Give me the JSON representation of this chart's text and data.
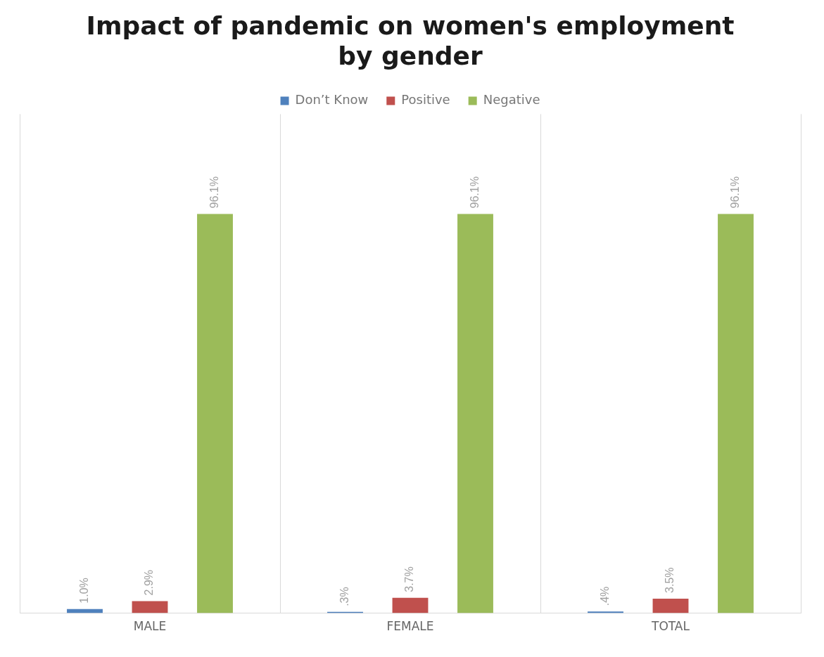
{
  "chart_data": {
    "type": "bar",
    "title": "Impact of pandemic on women's employment by gender",
    "categories": [
      "MALE",
      "FEMALE",
      "TOTAL"
    ],
    "series": [
      {
        "name": "Don’t Know",
        "color": "#4f81bd",
        "values": [
          1.0,
          0.3,
          0.4
        ],
        "value_labels": [
          "1.0%",
          ".3%",
          ".4%"
        ]
      },
      {
        "name": "Positive",
        "color": "#c0504d",
        "values": [
          2.9,
          3.7,
          3.5
        ],
        "value_labels": [
          "2.9%",
          "3.7%",
          "3.5%"
        ]
      },
      {
        "name": "Negative",
        "color": "#9bbb59",
        "values": [
          96.1,
          96.1,
          96.1
        ],
        "value_labels": [
          "96.1%",
          "96.1%",
          "96.1%"
        ]
      }
    ],
    "grid": "x",
    "legend": "top"
  }
}
